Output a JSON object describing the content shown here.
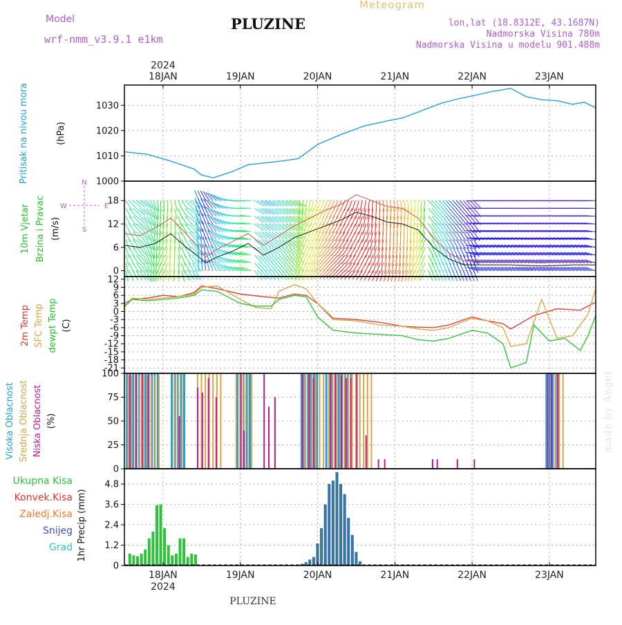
{
  "header": {
    "title": "PLUZINE",
    "meteogram_label": "Meteogram",
    "model_label": "Model",
    "model_name": "wrf-nmm_v3.9.1 e1km",
    "lonlat": "lon,lat (18.8312E, 43.1687N)",
    "altitude": "Nadmorska Visina 780m",
    "model_altitude": "Nadmorska Visina u modelu 901.488m",
    "bottom_station": "PLUZINE",
    "made_by": "made by Angel"
  },
  "colors": {
    "pressure": "#1ea1e0",
    "temp2m": "#e8322a",
    "sfc": "#d9a441",
    "dewpt": "#22c42b",
    "cloud_high": "#1e9fe0",
    "cloud_mid": "#d9a441",
    "cloud_low": "#c2188f",
    "precip_total": "#2cc23a",
    "precip_snow": "#3a4fd6",
    "precip_grad": "#2ec7c0",
    "precip_frz": "#f47b2b",
    "precip_conv": "#e8322a",
    "wind_calm": "#9b2fe0",
    "wind_strong": "#e8322a"
  },
  "chart_data": [
    {
      "type": "line",
      "id": "pressure",
      "ylabel_lines": [
        "Pritisak na nivou mora",
        "(hPa)"
      ],
      "yticks": [
        1000,
        1010,
        1020,
        1030
      ],
      "ylim": [
        1000,
        1038
      ],
      "xlim": [
        0,
        6.1
      ],
      "top_axis": {
        "year": "2024",
        "days": [
          "18JAN",
          "19JAN",
          "20JAN",
          "21JAN",
          "22JAN",
          "23JAN"
        ],
        "day_positions": [
          0.5,
          1.5,
          2.5,
          3.5,
          4.5,
          5.5
        ]
      },
      "series": [
        {
          "x": [
            0,
            0.3,
            0.6,
            0.9,
            1.0,
            1.15,
            1.4,
            1.6,
            1.85,
            2.05,
            2.25,
            2.5,
            2.8,
            3.1,
            3.4,
            3.6,
            3.9,
            4.1,
            4.3,
            4.55,
            4.75,
            5.0,
            5.2,
            5.4,
            5.6,
            5.8,
            5.95,
            6.1
          ],
          "y": [
            1011.6,
            1010.6,
            1007.9,
            1004.8,
            1002.4,
            1001.3,
            1003.8,
            1006.5,
            1007.3,
            1008.0,
            1008.9,
            1014.5,
            1018.4,
            1021.8,
            1023.8,
            1025.0,
            1028.5,
            1030.8,
            1032.4,
            1034.0,
            1035.4,
            1036.7,
            1033.4,
            1032.2,
            1031.8,
            1030.4,
            1031.2,
            1029.0
          ]
        }
      ]
    },
    {
      "type": "wind",
      "id": "wind",
      "ylabel_lines": [
        "10m Vjetar",
        "Brzina i Pravac",
        "(m/s)"
      ],
      "compass": {
        "n": "N",
        "s": "S",
        "w": "W",
        "e": "E"
      },
      "yticks": [
        0,
        6,
        12,
        18
      ],
      "ylim": [
        -1.5,
        23
      ],
      "xlim": [
        0,
        6.1
      ],
      "speed": {
        "x": [
          0,
          0.2,
          0.4,
          0.6,
          0.8,
          0.95,
          1.05,
          1.2,
          1.4,
          1.6,
          1.8,
          2.0,
          2.2,
          2.4,
          2.6,
          2.8,
          3.0,
          3.2,
          3.4,
          3.6,
          3.8,
          4.0,
          4.2,
          4.4,
          4.6,
          5.0,
          5.4,
          5.8,
          6.1
        ],
        "y": [
          6.5,
          6.0,
          7.0,
          9.5,
          6.0,
          3.8,
          2.0,
          3.5,
          5.0,
          7.0,
          4.0,
          6.0,
          8.5,
          10.0,
          11.5,
          13.0,
          15.0,
          14.0,
          12.5,
          12.0,
          10.5,
          6.0,
          3.0,
          1.5,
          1.5,
          1.5,
          1.2,
          1.5,
          1.5
        ]
      },
      "gust": {
        "x": [
          0,
          0.2,
          0.4,
          0.6,
          0.8,
          0.95,
          1.05,
          1.2,
          1.4,
          1.6,
          1.8,
          2.0,
          2.2,
          2.4,
          2.6,
          2.8,
          3.0,
          3.2,
          3.4,
          3.6,
          3.8,
          4.0,
          4.2,
          4.4,
          4.6,
          5.0,
          5.4,
          5.8,
          6.1
        ],
        "y": [
          9.5,
          9.0,
          11.0,
          13.5,
          9.5,
          6.0,
          3.5,
          5.5,
          7.5,
          9.5,
          6.5,
          9.0,
          11.5,
          13.5,
          15.5,
          17.0,
          19.5,
          18.0,
          16.5,
          16.0,
          13.5,
          8.5,
          4.5,
          2.5,
          2.5,
          2.3,
          2.0,
          2.3,
          2.2
        ]
      }
    },
    {
      "type": "line",
      "id": "temperature",
      "ylabel_lines": [
        "2m Temp",
        "SFC Temp",
        "dewpt Temp",
        "(C)"
      ],
      "yticks": [
        12,
        9,
        6,
        3,
        0,
        -3,
        -6,
        -9,
        -12,
        -15,
        -18,
        -21
      ],
      "ylim": [
        -23,
        13
      ],
      "xlim": [
        0,
        6.1
      ],
      "series": [
        {
          "name": "2m Temp",
          "x": [
            0,
            0.1,
            0.3,
            0.5,
            0.7,
            0.9,
            1.0,
            1.2,
            1.5,
            1.8,
            2.0,
            2.2,
            2.35,
            2.5,
            2.7,
            3.0,
            3.3,
            3.6,
            3.8,
            4.0,
            4.2,
            4.5,
            4.7,
            4.9,
            5.0,
            5.3,
            5.6,
            5.9,
            6.1
          ],
          "y": [
            3.0,
            4.5,
            5.0,
            6.0,
            5.5,
            7.0,
            9.5,
            8.5,
            6.5,
            5.5,
            5.0,
            6.5,
            6.0,
            3.0,
            -2.5,
            -3.0,
            -4.0,
            -5.5,
            -5.8,
            -6.0,
            -5.0,
            -2.0,
            -3.5,
            -4.5,
            -6.5,
            -1.5,
            1.0,
            0.5,
            3.5
          ]
        },
        {
          "name": "SFC Temp",
          "x": [
            0,
            0.1,
            0.3,
            0.5,
            0.7,
            0.9,
            1.0,
            1.2,
            1.5,
            1.7,
            1.9,
            2.0,
            2.2,
            2.35,
            2.5,
            2.7,
            3.0,
            3.3,
            3.6,
            3.8,
            4.0,
            4.2,
            4.5,
            4.7,
            4.9,
            5.0,
            5.2,
            5.4,
            5.6,
            5.8,
            6.0,
            6.1
          ],
          "y": [
            1.5,
            5.0,
            4.5,
            5.0,
            5.5,
            6.5,
            9.0,
            9.5,
            4.5,
            1.5,
            1.0,
            7.5,
            10.0,
            8.5,
            3.0,
            -3.0,
            -3.5,
            -5.0,
            -5.5,
            -6.5,
            -7.0,
            -6.0,
            -2.5,
            -3.5,
            -6.0,
            -13.0,
            -12.0,
            4.5,
            -10.0,
            -9.0,
            -1.0,
            8.5
          ]
        },
        {
          "name": "dewpt Temp",
          "x": [
            0,
            0.1,
            0.3,
            0.5,
            0.7,
            0.9,
            1.0,
            1.2,
            1.5,
            1.7,
            1.9,
            2.0,
            2.2,
            2.35,
            2.5,
            2.7,
            3.0,
            3.3,
            3.6,
            3.8,
            4.0,
            4.2,
            4.5,
            4.7,
            4.9,
            5.0,
            5.2,
            5.3,
            5.5,
            5.7,
            5.9,
            6.0,
            6.1
          ],
          "y": [
            2.0,
            4.5,
            4.0,
            4.5,
            5.0,
            6.0,
            8.0,
            7.5,
            3.0,
            2.0,
            2.0,
            4.5,
            6.0,
            5.5,
            -2.0,
            -7.0,
            -8.0,
            -8.5,
            -9.0,
            -10.5,
            -11.0,
            -10.0,
            -7.0,
            -8.0,
            -12.0,
            -21.0,
            -19.0,
            -5.0,
            -11.0,
            -10.0,
            -14.5,
            -9.0,
            -1.5
          ]
        }
      ]
    },
    {
      "type": "bar",
      "id": "clouds",
      "ylabel_lines": [
        "Visoka Oblacnost",
        "Srednja Oblacnost",
        "Niska Oblacnost",
        "(%)"
      ],
      "yticks": [
        0,
        25,
        50,
        75,
        100
      ],
      "ylim": [
        0,
        100
      ],
      "xlim": [
        0,
        6.1
      ],
      "series": [
        {
          "name": "Visoka Oblacnost",
          "segments": [
            [
              0.02,
              0.42,
              100
            ],
            [
              0.6,
              0.8,
              100
            ],
            [
              1.45,
              1.65,
              100
            ],
            [
              2.28,
              2.5,
              100
            ],
            [
              2.6,
              2.95,
              100
            ],
            [
              5.45,
              5.62,
              100
            ]
          ]
        },
        {
          "name": "Srednja Oblacnost",
          "segments": [
            [
              0.02,
              0.45,
              98
            ],
            [
              0.62,
              0.75,
              99
            ],
            [
              0.92,
              1.25,
              100
            ],
            [
              1.42,
              1.65,
              99
            ],
            [
              2.3,
              2.55,
              100
            ],
            [
              2.62,
              3.2,
              100
            ],
            [
              5.45,
              5.65,
              100
            ]
          ]
        },
        {
          "name": "Niska Oblacnost",
          "x": [
            0.06,
            0.14,
            0.22,
            0.3,
            0.7,
            0.94,
            1.0,
            1.08,
            1.18,
            1.5,
            1.54,
            1.8,
            1.86,
            1.94,
            2.3,
            2.38,
            2.44,
            2.66,
            2.72,
            2.8,
            2.86,
            2.92,
            3.0,
            3.12,
            3.28,
            3.36,
            3.98,
            4.04,
            4.3,
            4.52,
            5.47,
            5.52,
            5.6
          ],
          "y": [
            100,
            100,
            100,
            100,
            55,
            85,
            80,
            95,
            75,
            100,
            40,
            100,
            65,
            75,
            100,
            100,
            95,
            100,
            100,
            98,
            95,
            95,
            100,
            35,
            10,
            10,
            10,
            10,
            10,
            10,
            100,
            100,
            100
          ]
        }
      ]
    },
    {
      "type": "bar",
      "id": "precip",
      "ylabel_lines": [
        "1hr Precip (mm)"
      ],
      "legend": [
        "Ukupna Kisa",
        "Konvek.Kisa",
        "Zaledj.Kisa",
        "Snijeg",
        "Grad"
      ],
      "yticks": [
        0,
        1.2,
        2.4,
        3.6,
        4.8
      ],
      "ylim": [
        0,
        5.7
      ],
      "xlim": [
        0,
        6.1
      ],
      "bottom_axis": {
        "year": "2024",
        "days": [
          "18JAN",
          "19JAN",
          "20JAN",
          "21JAN",
          "22JAN",
          "23JAN"
        ],
        "day_positions": [
          0.5,
          1.5,
          2.5,
          3.5,
          4.5,
          5.5
        ]
      },
      "series": [
        {
          "name": "Ukupna Kisa",
          "x": [
            0.07,
            0.12,
            0.17,
            0.22,
            0.27,
            0.32,
            0.37,
            0.42,
            0.47,
            0.52,
            0.57,
            0.62,
            0.67,
            0.72,
            0.77,
            0.82,
            0.87,
            0.92
          ],
          "y": [
            0.7,
            0.6,
            0.55,
            0.7,
            0.95,
            1.6,
            2.0,
            3.55,
            3.6,
            2.2,
            1.2,
            0.6,
            0.7,
            1.6,
            1.6,
            0.5,
            0.7,
            0.65
          ]
        },
        {
          "name": "Snijeg",
          "x": [
            2.3,
            2.35,
            2.4,
            2.45,
            2.5,
            2.55,
            2.6,
            2.65,
            2.7,
            2.75,
            2.8,
            2.85,
            2.9,
            2.95,
            3.0,
            3.05
          ],
          "y": [
            0.1,
            0.2,
            0.35,
            0.5,
            1.3,
            2.2,
            3.6,
            4.8,
            5.0,
            5.5,
            4.8,
            4.2,
            2.8,
            1.8,
            0.8,
            0.25
          ]
        }
      ]
    }
  ]
}
